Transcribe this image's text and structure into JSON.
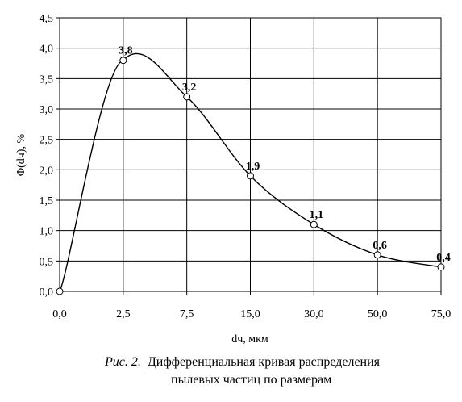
{
  "chart_data": {
    "type": "line",
    "categories": [
      "0,0",
      "2,5",
      "7,5",
      "15,0",
      "30,0",
      "50,0",
      "75,0"
    ],
    "values": [
      0,
      3.8,
      3.2,
      1.9,
      1.1,
      0.6,
      0.4
    ],
    "data_labels": [
      "",
      "3,8",
      "3,2",
      "1,9",
      "1,1",
      "0,6",
      "0,4"
    ],
    "ylabel": "Φ(dч), %",
    "xlabel": "dч, мкм",
    "ylim": [
      0,
      4.5
    ],
    "yticks": [
      "0,0",
      "0,5",
      "1,0",
      "1,5",
      "2,0",
      "2,5",
      "3,0",
      "3,5",
      "4,0",
      "4,5"
    ],
    "grid": true,
    "smooth": true,
    "line_color": "#000000",
    "marker": "open-circle"
  },
  "caption": {
    "prefix": "Рис. 2.",
    "line1": "Дифференциальная кривая распределения",
    "line2": "пылевых частиц по размерам"
  }
}
